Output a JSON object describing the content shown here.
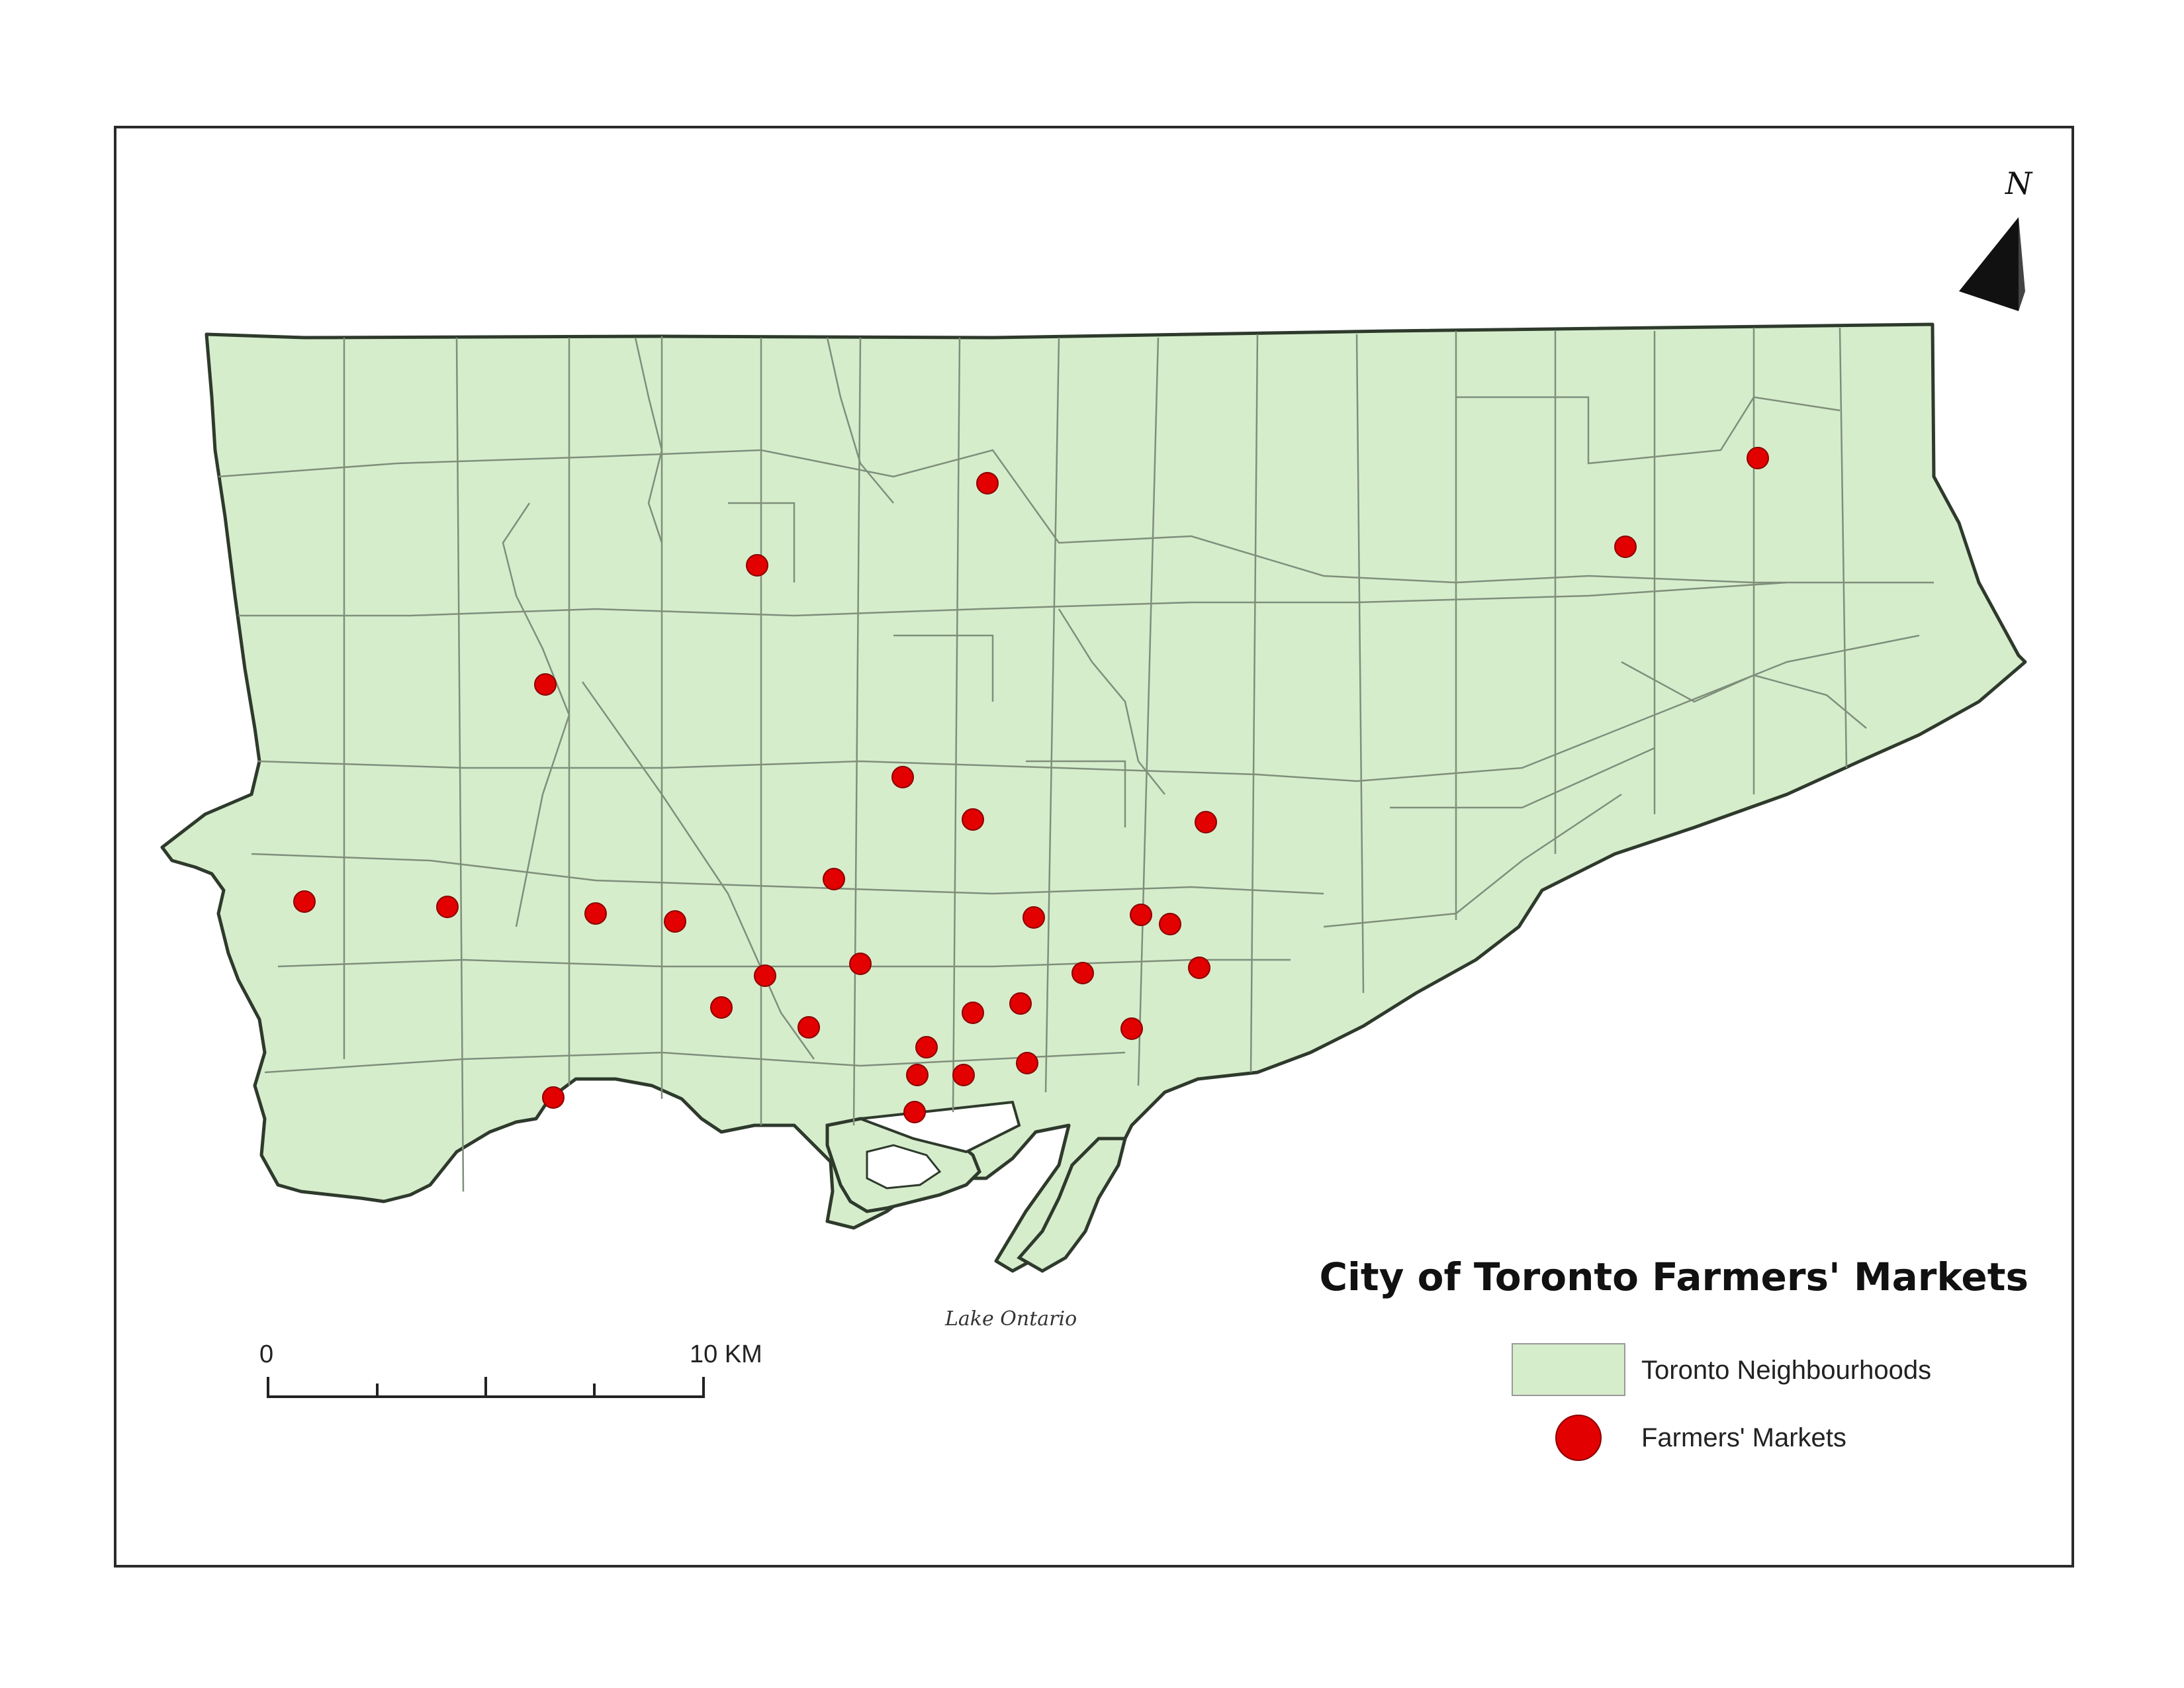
{
  "map": {
    "title": "City of Toronto Farmers' Markets",
    "water_label": "Lake Ontario",
    "north_label": "N",
    "scale_bar": {
      "start_label": "0",
      "end_label": "10 KM",
      "divisions": 4
    },
    "legend": [
      {
        "label": "Toronto Neighbourhoods",
        "symbol": "polygon",
        "color": "#d6edcc"
      },
      {
        "label": "Farmers' Markets",
        "symbol": "circle",
        "color": "#e20000"
      }
    ],
    "colors": {
      "land_fill": "#d6edcc",
      "boundary": "#7f8f7b",
      "outline": "#2e3a2c",
      "market": "#e20000"
    },
    "farmers_markets_count": 33
  }
}
